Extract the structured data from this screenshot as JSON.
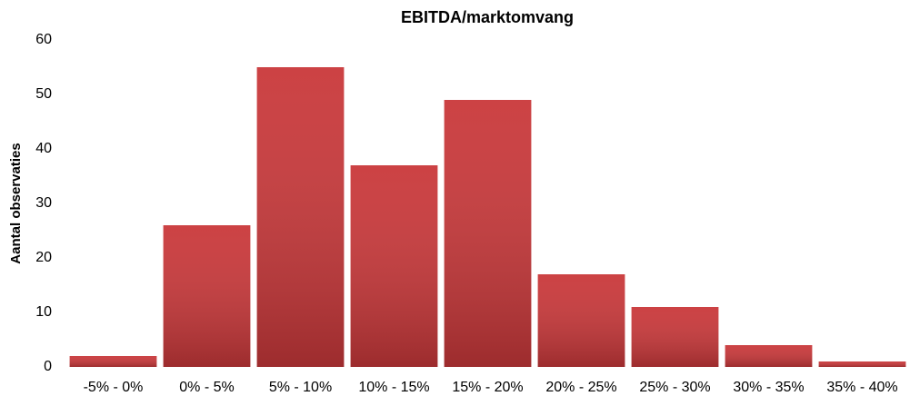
{
  "chart_data": {
    "type": "bar",
    "title": "EBITDA/marktomvang",
    "y_label": "Aantal observaties",
    "categories": [
      "-5% - 0%",
      "0% - 5%",
      "5% - 10%",
      "10% - 15%",
      "15% - 20%",
      "20% - 25%",
      "25% - 30%",
      "30% - 35%",
      "35% - 40%"
    ],
    "values": [
      2,
      26,
      55,
      37,
      49,
      17,
      11,
      4,
      1
    ],
    "color": "#c9383a",
    "ylim": [
      0,
      60
    ],
    "yticks": [
      0,
      10,
      20,
      30,
      40,
      50,
      60
    ],
    "grid": false
  }
}
